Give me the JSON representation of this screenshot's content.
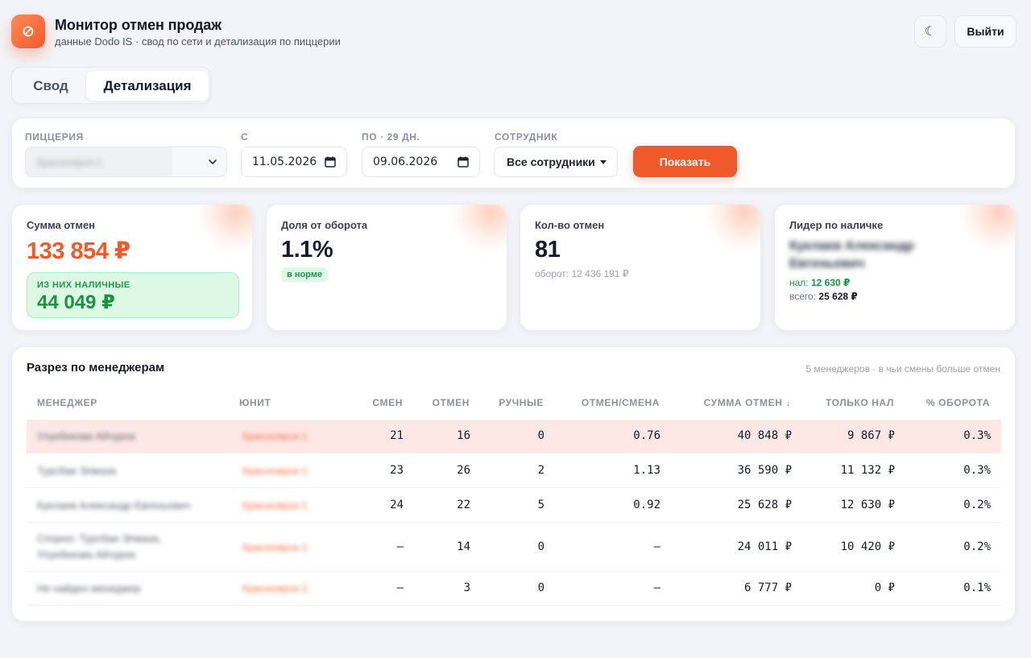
{
  "header": {
    "title": "Монитор отмен продаж",
    "subtitle": "данные Dodo IS · свод по сети и детализация по пиццерии",
    "theme_icon": "☾",
    "logout_label": "Выйти",
    "logo_icon": "no-entry-icon"
  },
  "tabs": [
    {
      "label": "Свод",
      "active": false
    },
    {
      "label": "Детализация",
      "active": true
    }
  ],
  "filters": {
    "pizzeria_label": "Пиццерия",
    "pizzeria_value": "Красноярск-1",
    "from_label": "С",
    "from_value": "11.05.2026",
    "to_label": "По · 29 дн.",
    "to_value": "09.06.2026",
    "employee_label": "Сотрудник",
    "employee_value": "Все сотрудники",
    "show_label": "Показать"
  },
  "kpis": {
    "sum": {
      "label": "Сумма отмен",
      "value": "133 854 ₽",
      "cash_label": "ИЗ НИХ НАЛИЧНЫЕ",
      "cash_value": "44 049 ₽"
    },
    "share": {
      "label": "Доля от оборота",
      "value": "1.1%",
      "badge": "в норме"
    },
    "count": {
      "label": "Кол-во отмен",
      "value": "81",
      "sub": "оборот: 12 436 191 ₽"
    },
    "leader": {
      "label": "Лидер по наличке",
      "name": "Куклаев Александр Евгеньевич",
      "cash_prefix": "нал:",
      "cash_value": "12 630 ₽",
      "total_prefix": "всего:",
      "total_value": "25 628 ₽"
    }
  },
  "table": {
    "title": "Разрез по менеджерам",
    "note": "5 менеджеров · в чьи смены больше отмен",
    "columns": [
      "Менеджер",
      "Юнит",
      "Смен",
      "Отмен",
      "Ручные",
      "Отмен/смена",
      "Сумма отмен ↓",
      "Только нал",
      "% оборота"
    ],
    "rows": [
      {
        "manager": "Улукбекова Айчурок",
        "unit": "Красноярск-1",
        "shifts": "21",
        "cancels": "16",
        "manual": "0",
        "per_shift": "0.76",
        "sum": "40 848 ₽",
        "cash": "9 867 ₽",
        "pct": "0.3%"
      },
      {
        "manager": "Турсбаи Элмаза",
        "unit": "Красноярск-1",
        "shifts": "23",
        "cancels": "26",
        "manual": "2",
        "per_shift": "1.13",
        "sum": "36 590 ₽",
        "cash": "11 132 ₽",
        "pct": "0.3%"
      },
      {
        "manager": "Куклаев Александр Евгеньевич",
        "unit": "Красноярск-1",
        "shifts": "24",
        "cancels": "22",
        "manual": "5",
        "per_shift": "0.92",
        "sum": "25 628 ₽",
        "cash": "12 630 ₽",
        "pct": "0.2%"
      },
      {
        "manager": "Спорно: Турсбаи Элмаза, Улукбекова Айчурок",
        "unit": "Красноярск-1",
        "shifts": "—",
        "cancels": "14",
        "manual": "0",
        "per_shift": "—",
        "sum": "24 011 ₽",
        "cash": "10 420 ₽",
        "pct": "0.2%"
      },
      {
        "manager": "Не найден менеджер",
        "unit": "Красноярск-1",
        "shifts": "—",
        "cancels": "3",
        "manual": "0",
        "per_shift": "—",
        "sum": "6 777 ₽",
        "cash": "0 ₽",
        "pct": "0.1%"
      }
    ]
  },
  "colors": {
    "accent": "#f0592a",
    "cash_green": "#18943f",
    "highlight_row": "#fde8e6"
  }
}
